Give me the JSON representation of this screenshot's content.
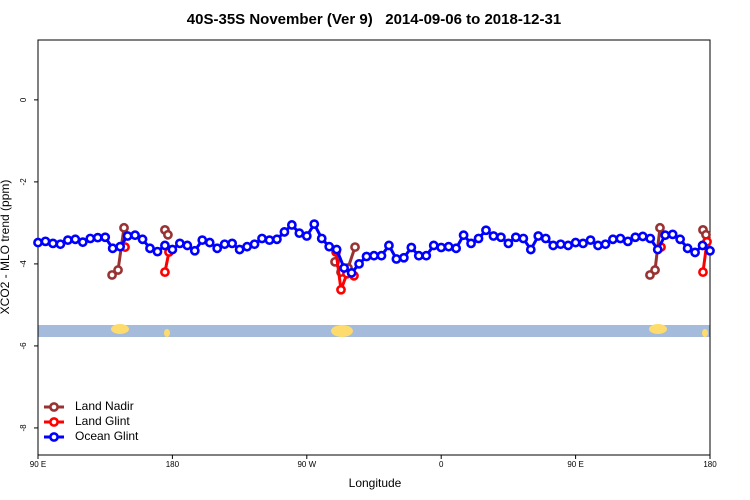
{
  "chart_data": {
    "type": "line",
    "title": "40S-35S November (Ver 9)   2014-09-06 to 2018-12-31",
    "x_label": "Longitude",
    "y_label": "XCO2 - MLO trend (ppm)",
    "xlim": [
      90,
      540
    ],
    "xticks": [
      {
        "value": 90,
        "label": "90 E"
      },
      {
        "value": 180,
        "label": "180"
      },
      {
        "value": 270,
        "label": "90 W"
      },
      {
        "value": 360,
        "label": "0"
      },
      {
        "value": 450,
        "label": "90 E"
      },
      {
        "value": 540,
        "label": "180"
      }
    ],
    "ylim": [
      -8.66,
      1.46
    ],
    "yticks": [
      0,
      -2,
      -4,
      -6,
      -8
    ],
    "legend": "bottom-left",
    "series": [
      {
        "name": "Land Nadir",
        "color": "#993333",
        "x": [
          139.6,
          143.6,
          147.6,
          160,
          175,
          177,
          230,
          288.9,
          292.9,
          297.6,
          302.3,
          400,
          499.8,
          503.2,
          506.5,
          520,
          535.3,
          537.3
        ],
        "values": [
          -4.27,
          -4.15,
          -3.12,
          null,
          -3.17,
          -3.29,
          null,
          -3.95,
          -4.2,
          -4.1,
          -3.59,
          null,
          -4.27,
          -4.15,
          -3.12,
          null,
          -3.17,
          -3.29
        ]
      },
      {
        "name": "Land Glint",
        "color": "#ff0000",
        "x": [
          148.3,
          160,
          175,
          177.7,
          230,
          289.6,
          292.9,
          296.9,
          301.6,
          400,
          507.2,
          520,
          535.3,
          538
        ],
        "values": [
          -3.59,
          null,
          -4.2,
          -3.71,
          null,
          -3.71,
          -4.63,
          -4.24,
          -4.29,
          null,
          -3.59,
          null,
          -4.2,
          -3.46
        ]
      },
      {
        "name": "Ocean Glint",
        "color": "#0000ff",
        "x": [
          90,
          95,
          100,
          105,
          110,
          115,
          120,
          125,
          130,
          135,
          140,
          145,
          150,
          155,
          160,
          165,
          170,
          175,
          180,
          185,
          190,
          195,
          200,
          205,
          210,
          215,
          220,
          225,
          230,
          235,
          240,
          245,
          250,
          255,
          260,
          265,
          270,
          275,
          280,
          285,
          290,
          295,
          300,
          305,
          310,
          315,
          320,
          325,
          330,
          335,
          340,
          345,
          350,
          355,
          360,
          365,
          370,
          375,
          380,
          385,
          390,
          395,
          400,
          405,
          410,
          415,
          420,
          425,
          430,
          435,
          440,
          445,
          450,
          455,
          460,
          465,
          470,
          475,
          480,
          485,
          490,
          495,
          500,
          505,
          510,
          515,
          520,
          525,
          530,
          535,
          540
        ],
        "values": [
          -3.48,
          -3.45,
          -3.5,
          -3.52,
          -3.42,
          -3.4,
          -3.47,
          -3.38,
          -3.36,
          -3.35,
          -3.62,
          -3.58,
          -3.32,
          -3.3,
          -3.4,
          -3.62,
          -3.7,
          -3.55,
          -3.65,
          -3.5,
          -3.55,
          -3.68,
          -3.42,
          -3.48,
          -3.62,
          -3.52,
          -3.5,
          -3.65,
          -3.58,
          -3.52,
          -3.38,
          -3.42,
          -3.4,
          -3.22,
          -3.05,
          -3.25,
          -3.32,
          -3.03,
          -3.38,
          -3.58,
          -3.65,
          -4.1,
          -4.22,
          -4.0,
          -3.82,
          -3.8,
          -3.8,
          -3.55,
          -3.88,
          -3.85,
          -3.6,
          -3.8,
          -3.8,
          -3.55,
          -3.6,
          -3.58,
          -3.62,
          -3.3,
          -3.5,
          -3.38,
          -3.18,
          -3.32,
          -3.35,
          -3.5,
          -3.35,
          -3.38,
          -3.65,
          -3.32,
          -3.38,
          -3.55,
          -3.52,
          -3.55,
          -3.48,
          -3.5,
          -3.42,
          -3.55,
          -3.52,
          -3.4,
          -3.38,
          -3.45,
          -3.35,
          -3.33,
          -3.38,
          -3.65,
          -3.3,
          -3.28,
          -3.4,
          -3.62,
          -3.72,
          -3.55,
          -3.68
        ]
      }
    ]
  }
}
